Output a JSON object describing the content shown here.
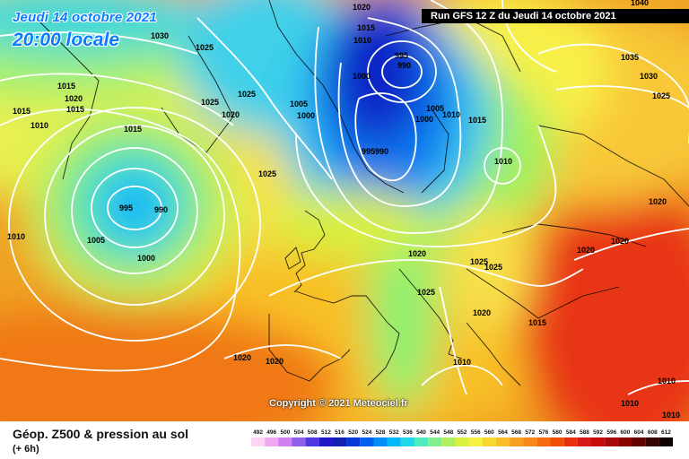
{
  "header": {
    "date": "Jeudi 14 octobre 2021",
    "time": "20:00 locale",
    "run": "Run GFS 12 Z du Jeudi 14 octobre 2021"
  },
  "copyright": "Copyright © 2021 Meteociel.fr",
  "footer": {
    "field_name": "Géop. Z500 & pression au sol",
    "step": "(+ 6h)"
  },
  "legend": {
    "ticks": [
      "492",
      "496",
      "500",
      "504",
      "508",
      "512",
      "516",
      "520",
      "524",
      "528",
      "532",
      "536",
      "540",
      "544",
      "548",
      "552",
      "556",
      "560",
      "564",
      "568",
      "572",
      "576",
      "580",
      "584",
      "588",
      "592",
      "596",
      "600",
      "604",
      "608",
      "612"
    ],
    "colors": [
      "#fcd4f4",
      "#f0a8f0",
      "#d080f0",
      "#9060e8",
      "#5038e0",
      "#2018c8",
      "#1020b0",
      "#0838d8",
      "#0060f0",
      "#0090f8",
      "#00b8f8",
      "#20d8e8",
      "#50ecc0",
      "#80f090",
      "#b0f060",
      "#d8f040",
      "#f8f040",
      "#f8d830",
      "#f8c028",
      "#f8a020",
      "#f88818",
      "#f86c10",
      "#f05008",
      "#e83010",
      "#d81818",
      "#c80c0c",
      "#a80808",
      "#880404",
      "#600000",
      "#380000",
      "#100000"
    ]
  },
  "isobar_labels": [
    {
      "text": "1030"
    },
    {
      "text": "1025"
    },
    {
      "text": "1020"
    },
    {
      "text": "1015"
    },
    {
      "text": "1015"
    },
    {
      "text": "1010"
    },
    {
      "text": "1015"
    },
    {
      "text": "1015"
    },
    {
      "text": "995"
    },
    {
      "text": "990"
    },
    {
      "text": "1005"
    },
    {
      "text": "1000"
    },
    {
      "text": "1010"
    },
    {
      "text": "1025"
    },
    {
      "text": "1025"
    },
    {
      "text": "1020"
    },
    {
      "text": "1025"
    },
    {
      "text": "1005"
    },
    {
      "text": "1000"
    },
    {
      "text": "1020"
    },
    {
      "text": "1015"
    },
    {
      "text": "1010"
    },
    {
      "text": "1000"
    },
    {
      "text": "995"
    },
    {
      "text": "990"
    },
    {
      "text": "1005"
    },
    {
      "text": "1010"
    },
    {
      "text": "1015"
    },
    {
      "text": "1000"
    },
    {
      "text": "995990"
    },
    {
      "text": "1010"
    },
    {
      "text": "1035"
    },
    {
      "text": "1030"
    },
    {
      "text": "1025"
    },
    {
      "text": "1020"
    },
    {
      "text": "1020"
    },
    {
      "text": "1020"
    },
    {
      "text": "1020"
    },
    {
      "text": "1025"
    },
    {
      "text": "1025"
    },
    {
      "text": "1025"
    },
    {
      "text": "1020"
    },
    {
      "text": "1015"
    },
    {
      "text": "1010"
    },
    {
      "text": "1020"
    },
    {
      "text": "1020"
    },
    {
      "text": "1010"
    },
    {
      "text": "1010"
    },
    {
      "text": "1010"
    },
    {
      "text": "1040"
    }
  ]
}
